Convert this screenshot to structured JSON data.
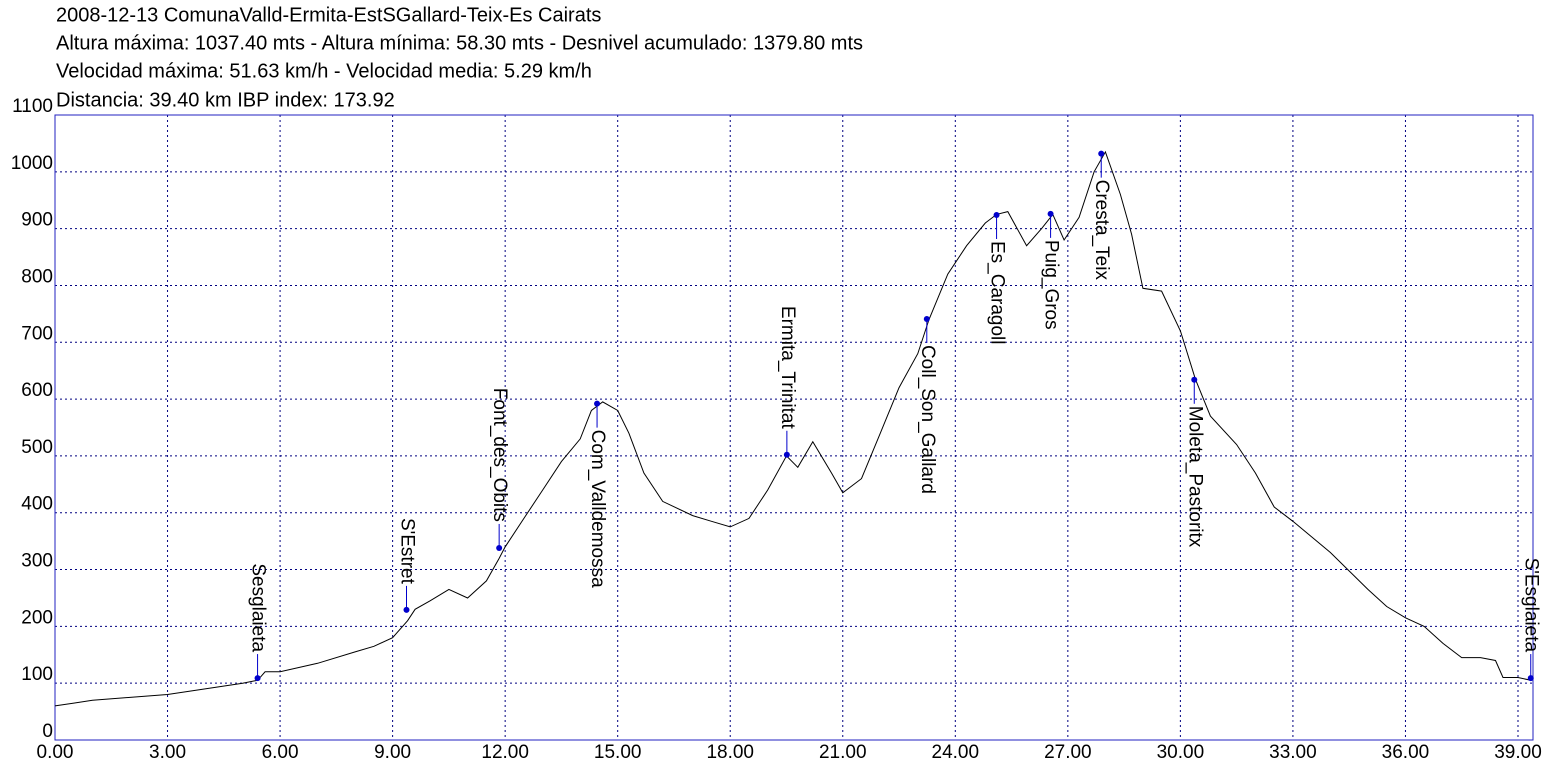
{
  "chart_data": {
    "type": "line",
    "title": "2008-12-13 ComunaValld-Ermita-EstSGallard-Teix-Es Cairats",
    "subtitle": [
      "Altura máxima: 1037.40 mts - Altura mínima: 58.30 mts - Desnivel acumulado: 1379.80 mts",
      "Velocidad máxima: 51.63 km/h - Velocidad media: 5.29 km/h",
      "Distancia: 39.40 km IBP index: 173.92"
    ],
    "color": "#000000",
    "marker_color": "#0000cc",
    "frame_color": "#2020c0",
    "grid": true,
    "grid_color": "#000080",
    "xlim": [
      0,
      39.4
    ],
    "ylim": [
      0,
      1100
    ],
    "xticks": [
      {
        "value": 0,
        "label": "0.00"
      },
      {
        "value": 3,
        "label": "3.00"
      },
      {
        "value": 6,
        "label": "6.00"
      },
      {
        "value": 9,
        "label": "9.00"
      },
      {
        "value": 12,
        "label": "12.00"
      },
      {
        "value": 15,
        "label": "15.00"
      },
      {
        "value": 18,
        "label": "18.00"
      },
      {
        "value": 21,
        "label": "21.00"
      },
      {
        "value": 24,
        "label": "24.00"
      },
      {
        "value": 27,
        "label": "27.00"
      },
      {
        "value": 30,
        "label": "30.00"
      },
      {
        "value": 33,
        "label": "33.00"
      },
      {
        "value": 36,
        "label": "36.00"
      },
      {
        "value": 39,
        "label": "39.00"
      }
    ],
    "yticks": [
      0,
      100,
      200,
      300,
      400,
      500,
      600,
      700,
      800,
      900,
      1000,
      1100
    ],
    "x": [
      0,
      0.5,
      1,
      2,
      3,
      4,
      5,
      5.4,
      5.6,
      6,
      7,
      8,
      8.5,
      9,
      9.4,
      9.6,
      10,
      10.5,
      11,
      11.5,
      11.84,
      12,
      12.5,
      13,
      13.5,
      14,
      14.3,
      14.6,
      15,
      15.3,
      15.7,
      16.2,
      17,
      17.5,
      18,
      18.5,
      19,
      19.5,
      19.8,
      20.2,
      20.7,
      21,
      21.5,
      22,
      22.5,
      23,
      23.3,
      23.8,
      24.3,
      24.8,
      25.1,
      25.4,
      25.9,
      26.3,
      26.6,
      26.9,
      27.3,
      27.7,
      28,
      28.4,
      28.7,
      29,
      29.5,
      30,
      30.4,
      30.8,
      31.5,
      32,
      32.5,
      33,
      34,
      35,
      35.5,
      36,
      36.5,
      37,
      37.5,
      38,
      38.4,
      38.6,
      39,
      39.34
    ],
    "values": [
      60,
      65,
      70,
      75,
      80,
      90,
      100,
      105,
      120,
      120,
      135,
      155,
      165,
      180,
      210,
      230,
      245,
      265,
      250,
      280,
      320,
      340,
      390,
      440,
      490,
      530,
      580,
      595,
      580,
      540,
      470,
      420,
      395,
      385,
      375,
      390,
      440,
      500,
      480,
      525,
      470,
      435,
      460,
      540,
      620,
      680,
      740,
      820,
      870,
      910,
      925,
      930,
      870,
      900,
      925,
      880,
      920,
      1000,
      1035,
      960,
      890,
      795,
      790,
      720,
      635,
      570,
      520,
      470,
      410,
      385,
      330,
      265,
      235,
      215,
      200,
      170,
      145,
      145,
      140,
      110,
      110,
      105
    ],
    "waypoints": [
      {
        "label": "Sesglaieta",
        "x": 5.4,
        "y": 109
      },
      {
        "label": "S'Estret",
        "x": 9.37,
        "y": 229
      },
      {
        "label": "Font_des_Obits",
        "x": 11.84,
        "y": 338
      },
      {
        "label": "Com_Valldemossa",
        "x": 14.45,
        "y": 592
      },
      {
        "label": "Ermita_Trinitat",
        "x": 19.51,
        "y": 502
      },
      {
        "label": "Coll_Son_Gallard",
        "x": 23.24,
        "y": 741
      },
      {
        "label": "Es_Caragoll",
        "x": 25.1,
        "y": 924
      },
      {
        "label": "Puig_Gros",
        "x": 26.54,
        "y": 926
      },
      {
        "label": "Cresta_Teix",
        "x": 27.89,
        "y": 1032
      },
      {
        "label": "Moleta_Pastoritx",
        "x": 30.37,
        "y": 634
      },
      {
        "label": "S'Esglaieta",
        "x": 39.34,
        "y": 109
      }
    ]
  }
}
